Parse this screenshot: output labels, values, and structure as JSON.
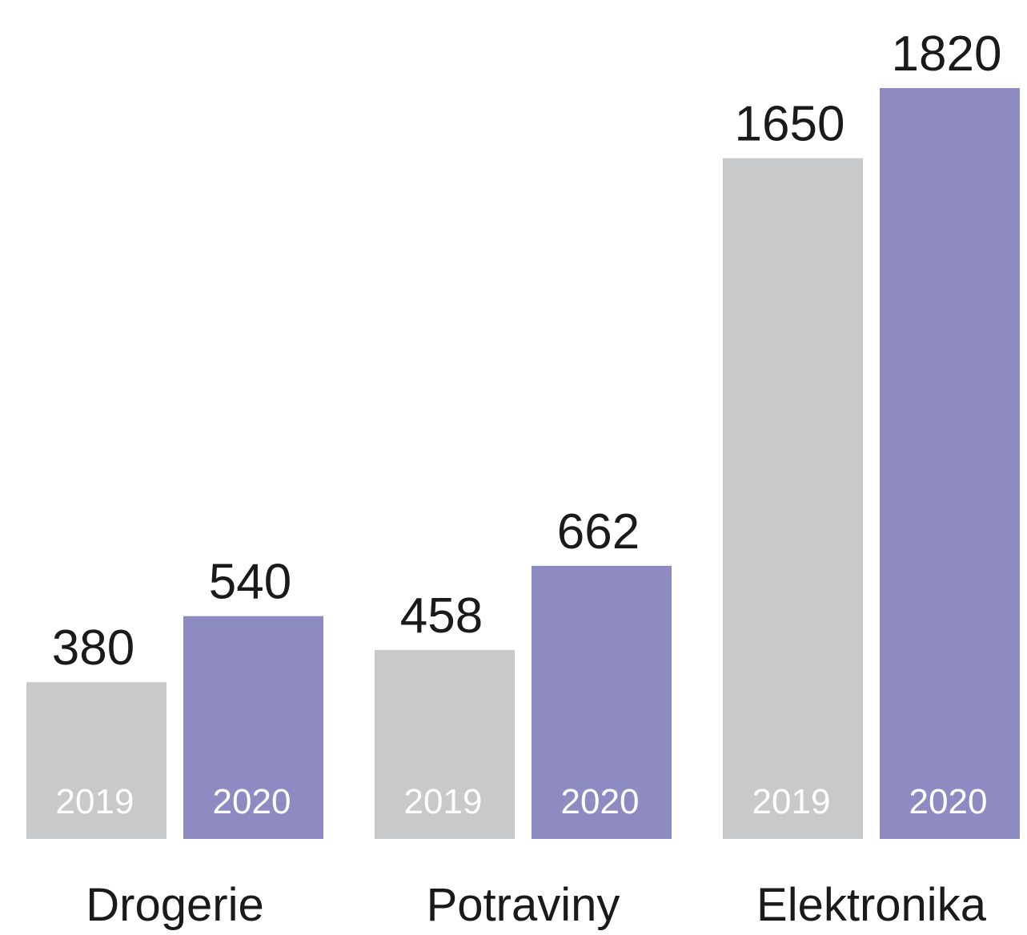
{
  "chart_data": {
    "type": "bar",
    "categories": [
      "Drogerie",
      "Potraviny",
      "Elektronika"
    ],
    "series": [
      {
        "name": "2019",
        "color": "#c8c9cb",
        "values": [
          380,
          458,
          1650
        ]
      },
      {
        "name": "2020",
        "color": "#8d8bc1",
        "values": [
          540,
          662,
          1820
        ]
      }
    ]
  }
}
